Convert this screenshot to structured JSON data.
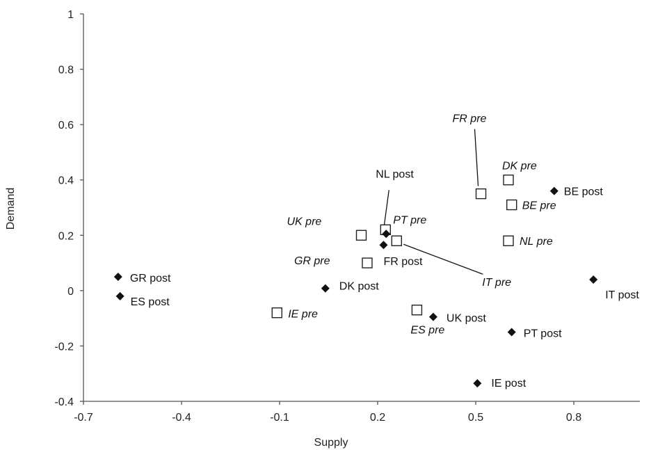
{
  "chart_data": {
    "type": "scatter",
    "xlabel": "Supply",
    "ylabel": "Demand",
    "xlim": [
      -0.7,
      0.95
    ],
    "ylim": [
      -0.4,
      1.0
    ],
    "xticks": [
      -0.7,
      -0.4,
      -0.1,
      0.2,
      0.5,
      0.8
    ],
    "yticks": [
      -0.4,
      -0.2,
      0,
      0.2,
      0.4,
      0.6,
      0.8,
      1
    ],
    "xtick_labels": [
      "-0.7",
      "-0.4",
      "-0.1",
      "0.2",
      "0.5",
      "0.8"
    ],
    "ytick_labels": [
      "-0.4",
      "-0.2",
      "0",
      "0.2",
      "0.4",
      "0.6",
      "0.8",
      "1"
    ],
    "grid": false,
    "series": [
      {
        "marker": "open-square",
        "label_style": "italic",
        "points": [
          {
            "label": "FR pre",
            "x": 0.516,
            "y": 0.35
          },
          {
            "label": "DK pre",
            "x": 0.6,
            "y": 0.4
          },
          {
            "label": "BE pre",
            "x": 0.61,
            "y": 0.31
          },
          {
            "label": "NL pre",
            "x": 0.6,
            "y": 0.18
          },
          {
            "label": "UK pre",
            "x": 0.15,
            "y": 0.2
          },
          {
            "label": "PT pre",
            "x": 0.224,
            "y": 0.22
          },
          {
            "label": "IT pre",
            "x": 0.258,
            "y": 0.18
          },
          {
            "label": "GR pre",
            "x": 0.168,
            "y": 0.1
          },
          {
            "label": "ES pre",
            "x": 0.32,
            "y": -0.07
          },
          {
            "label": "IE pre",
            "x": -0.108,
            "y": -0.08
          }
        ]
      },
      {
        "marker": "filled-diamond",
        "label_style": "normal",
        "points": [
          {
            "label": "NL post",
            "x": 0.226,
            "y": 0.205
          },
          {
            "label": "FR post",
            "x": 0.218,
            "y": 0.165
          },
          {
            "label": "BE post",
            "x": 0.74,
            "y": 0.36
          },
          {
            "label": "IT post",
            "x": 0.86,
            "y": 0.04
          },
          {
            "label": "GR post",
            "x": -0.594,
            "y": 0.05
          },
          {
            "label": "ES post",
            "x": -0.588,
            "y": -0.02
          },
          {
            "label": "DK post",
            "x": 0.04,
            "y": 0.008
          },
          {
            "label": "UK post",
            "x": 0.37,
            "y": -0.095
          },
          {
            "label": "PT post",
            "x": 0.61,
            "y": -0.15
          },
          {
            "label": "IE post",
            "x": 0.505,
            "y": -0.335
          }
        ]
      }
    ]
  }
}
